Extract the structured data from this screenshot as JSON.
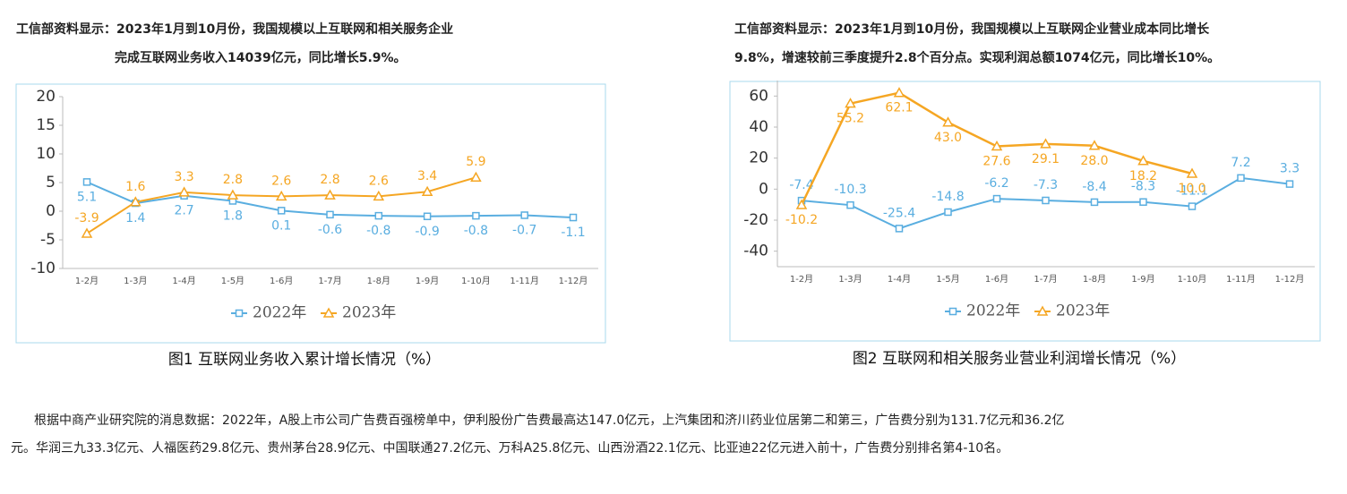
{
  "header_left": [
    "工信部资料显示：2023年1月到10月份，我国规模以上互联网和相关服务企业",
    "完成互联网业务收入14039亿元，同比增长5.9%。"
  ],
  "header_right": [
    "工信部资料显示：2023年1月到10月份，我国规模以上互联网企业营业成本同比增长",
    "9.8%，增速较前三季度提升2.8个百分点。实现利润总额1074亿元，同比增长10%。"
  ],
  "paragraph": [
    "根据中商产业研究院的消息数据：2022年，A股上市公司广告费百强榜单中，伊利股份广告费最高达147.0亿元，上汽集团和济川药业位居第二和第三，广告费分别为131.7亿元和36.2亿",
    "元。华润三九33.3亿元、人福医药29.8亿元、贵州茅台28.9亿元、中国联通27.2亿元、万科A25.8亿元、山西汾酒22.1亿元、比亚迪22亿元进入前十，广告费分别排名第4-10名。"
  ],
  "chart_data": [
    {
      "type": "line",
      "title": "图1  互联网业务收入累计增长情况（%）",
      "categories": [
        "1-2月",
        "1-3月",
        "1-4月",
        "1-5月",
        "1-6月",
        "1-7月",
        "1-8月",
        "1-9月",
        "1-10月",
        "1-11月",
        "1-12月"
      ],
      "series": [
        {
          "name": "2022年",
          "color": "#5aaee0",
          "values": [
            5.1,
            1.4,
            2.7,
            1.8,
            0.1,
            -0.6,
            -0.8,
            -0.9,
            -0.8,
            -0.7,
            -1.1
          ]
        },
        {
          "name": "2023年",
          "color": "#f5a623",
          "values": [
            -3.9,
            1.6,
            3.3,
            2.8,
            2.6,
            2.8,
            2.6,
            3.4,
            5.9,
            null,
            null
          ]
        }
      ],
      "ylim": [
        -10,
        20
      ],
      "yticks": [
        -10,
        -5,
        0,
        5,
        10,
        15,
        20
      ],
      "legend": "bottom"
    },
    {
      "type": "line",
      "title": "图2  互联网和相关服务业营业利润增长情况（%）",
      "categories": [
        "1-2月",
        "1-3月",
        "1-4月",
        "1-5月",
        "1-6月",
        "1-7月",
        "1-8月",
        "1-9月",
        "1-10月",
        "1-11月",
        "1-12月"
      ],
      "series": [
        {
          "name": "2022年",
          "color": "#5aaee0",
          "values": [
            -7.4,
            -10.3,
            -25.4,
            -14.8,
            -6.2,
            -7.3,
            -8.4,
            -8.3,
            -11.1,
            7.2,
            3.3
          ]
        },
        {
          "name": "2023年",
          "color": "#f5a623",
          "values": [
            -10.2,
            55.2,
            62.1,
            43,
            27.6,
            29.1,
            28,
            18.2,
            10,
            null,
            null
          ],
          "value_labels": [
            "-10.2",
            "55.2",
            "62.1",
            "43.0",
            "27.6",
            "29.1",
            "28.0",
            "18.2",
            "10.0",
            null,
            null
          ]
        }
      ],
      "ylim": [
        -50,
        70
      ],
      "yticks": [
        -40,
        -20,
        0,
        20,
        40,
        60
      ],
      "legend": "bottom"
    }
  ]
}
